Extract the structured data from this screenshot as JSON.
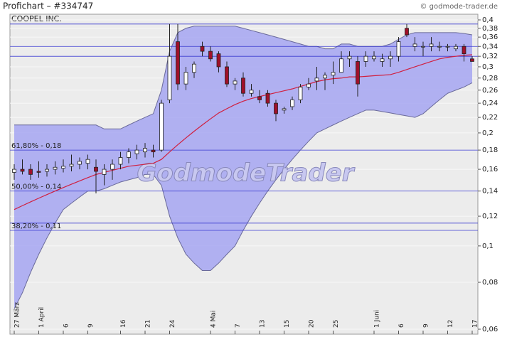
{
  "title": "Profichart – #334747",
  "copyright": "© godmode-trader.de",
  "chart_data": {
    "type": "candlestick",
    "title": "COOPEL INC.",
    "watermark": "GodmodeTrader",
    "log_scale": true,
    "categories": [
      "27 März",
      null,
      null,
      "1 April",
      null,
      null,
      "6",
      null,
      null,
      "9",
      null,
      null,
      null,
      "16",
      null,
      null,
      "21",
      null,
      null,
      "24",
      null,
      null,
      null,
      null,
      "4 Mai",
      null,
      null,
      "7",
      null,
      null,
      "13",
      null,
      null,
      "15",
      null,
      null,
      "20",
      null,
      null,
      "25",
      null,
      null,
      null,
      null,
      "1 Juni",
      null,
      null,
      "6",
      null,
      null,
      "9",
      null,
      null,
      "12",
      null,
      null,
      "17"
    ],
    "open": [
      0.157,
      0.16,
      0.16,
      0.158,
      0.158,
      0.16,
      0.161,
      0.163,
      0.165,
      0.166,
      0.162,
      0.155,
      0.16,
      0.165,
      0.172,
      0.176,
      0.178,
      0.18,
      0.18,
      0.245,
      0.35,
      0.27,
      0.29,
      0.34,
      0.33,
      0.325,
      0.3,
      0.27,
      0.28,
      0.255,
      0.25,
      0.255,
      0.24,
      0.23,
      0.235,
      0.245,
      0.265,
      0.275,
      0.28,
      0.285,
      0.29,
      0.315,
      0.31,
      0.31,
      0.315,
      0.31,
      0.315,
      0.32,
      0.38,
      0.34,
      0.34,
      0.34,
      0.34,
      0.34,
      0.335,
      0.34,
      0.315
    ],
    "high": [
      0.165,
      0.17,
      0.165,
      0.168,
      0.165,
      0.168,
      0.17,
      0.175,
      0.172,
      0.175,
      0.17,
      0.165,
      0.17,
      0.178,
      0.182,
      0.186,
      0.188,
      0.186,
      0.245,
      0.39,
      0.39,
      0.3,
      0.31,
      0.35,
      0.34,
      0.33,
      0.31,
      0.28,
      0.29,
      0.27,
      0.26,
      0.26,
      0.245,
      0.235,
      0.25,
      0.27,
      0.28,
      0.3,
      0.29,
      0.31,
      0.33,
      0.33,
      0.32,
      0.33,
      0.33,
      0.325,
      0.33,
      0.36,
      0.39,
      0.36,
      0.35,
      0.36,
      0.35,
      0.345,
      0.345,
      0.345,
      0.32
    ],
    "low": [
      0.15,
      0.155,
      0.15,
      0.152,
      0.153,
      0.155,
      0.157,
      0.158,
      0.16,
      0.16,
      0.138,
      0.145,
      0.15,
      0.16,
      0.166,
      0.17,
      0.172,
      0.172,
      0.178,
      0.24,
      0.26,
      0.26,
      0.28,
      0.32,
      0.31,
      0.29,
      0.265,
      0.26,
      0.25,
      0.25,
      0.24,
      0.235,
      0.215,
      0.225,
      0.23,
      0.24,
      0.26,
      0.26,
      0.26,
      0.27,
      0.29,
      0.3,
      0.25,
      0.3,
      0.31,
      0.3,
      0.3,
      0.31,
      0.36,
      0.33,
      0.32,
      0.33,
      0.33,
      0.33,
      0.33,
      0.31,
      0.31
    ],
    "close": [
      0.16,
      0.158,
      0.155,
      0.157,
      0.16,
      0.162,
      0.163,
      0.165,
      0.168,
      0.17,
      0.158,
      0.16,
      0.165,
      0.172,
      0.178,
      0.18,
      0.182,
      0.178,
      0.24,
      0.32,
      0.27,
      0.29,
      0.305,
      0.33,
      0.315,
      0.3,
      0.27,
      0.275,
      0.255,
      0.26,
      0.245,
      0.24,
      0.225,
      0.232,
      0.245,
      0.265,
      0.27,
      0.28,
      0.285,
      0.29,
      0.315,
      0.32,
      0.27,
      0.32,
      0.32,
      0.315,
      0.32,
      0.35,
      0.365,
      0.345,
      0.34,
      0.345,
      0.34,
      0.34,
      0.34,
      0.325,
      0.31
    ],
    "up_color": "#ffffff",
    "down_color": "#a0102a",
    "bands": {
      "color": "#aaaaf2",
      "upper": [
        0.21,
        0.21,
        0.21,
        0.21,
        0.21,
        0.21,
        0.21,
        0.21,
        0.21,
        0.21,
        0.21,
        0.205,
        0.205,
        0.205,
        0.21,
        0.215,
        0.22,
        0.225,
        0.26,
        0.33,
        0.37,
        0.38,
        0.385,
        0.385,
        0.385,
        0.385,
        0.385,
        0.385,
        0.38,
        0.375,
        0.37,
        0.365,
        0.36,
        0.355,
        0.35,
        0.345,
        0.34,
        0.34,
        0.335,
        0.335,
        0.345,
        0.345,
        0.34,
        0.34,
        0.34,
        0.34,
        0.345,
        0.355,
        0.365,
        0.37,
        0.37,
        0.37,
        0.37,
        0.37,
        0.37,
        0.368,
        0.365
      ],
      "lower": [
        0.068,
        0.075,
        0.085,
        0.095,
        0.105,
        0.115,
        0.125,
        0.13,
        0.135,
        0.14,
        0.14,
        0.142,
        0.145,
        0.148,
        0.15,
        0.152,
        0.155,
        0.155,
        0.145,
        0.12,
        0.105,
        0.095,
        0.09,
        0.086,
        0.086,
        0.09,
        0.095,
        0.1,
        0.11,
        0.12,
        0.13,
        0.14,
        0.15,
        0.16,
        0.17,
        0.18,
        0.19,
        0.2,
        0.205,
        0.21,
        0.215,
        0.22,
        0.225,
        0.23,
        0.23,
        0.228,
        0.226,
        0.224,
        0.222,
        0.22,
        0.225,
        0.235,
        0.245,
        0.255,
        0.26,
        0.265,
        0.272
      ]
    },
    "ma": {
      "color": "#d02040",
      "values": [
        0.125,
        0.128,
        0.131,
        0.134,
        0.137,
        0.14,
        0.143,
        0.146,
        0.149,
        0.152,
        0.155,
        0.157,
        0.159,
        0.161,
        0.163,
        0.164,
        0.165,
        0.166,
        0.17,
        0.178,
        0.186,
        0.194,
        0.202,
        0.21,
        0.218,
        0.226,
        0.232,
        0.238,
        0.243,
        0.247,
        0.25,
        0.253,
        0.256,
        0.259,
        0.262,
        0.266,
        0.27,
        0.274,
        0.277,
        0.279,
        0.28,
        0.282,
        0.282,
        0.283,
        0.284,
        0.285,
        0.286,
        0.29,
        0.295,
        0.3,
        0.305,
        0.31,
        0.315,
        0.318,
        0.32,
        0.322,
        0.323
      ]
    },
    "ylim": [
      0.06,
      0.4
    ],
    "yticks": [
      {
        "value": 0.06,
        "label": "0,06"
      },
      {
        "value": 0.08,
        "label": "0,08"
      },
      {
        "value": 0.1,
        "label": "0,1"
      },
      {
        "value": 0.12,
        "label": "0,12"
      },
      {
        "value": 0.14,
        "label": "0,14"
      },
      {
        "value": 0.16,
        "label": "0,16"
      },
      {
        "value": 0.18,
        "label": "0,18"
      },
      {
        "value": 0.2,
        "label": "0,2"
      },
      {
        "value": 0.22,
        "label": "0,22"
      },
      {
        "value": 0.24,
        "label": "0,24"
      },
      {
        "value": 0.26,
        "label": "0,26"
      },
      {
        "value": 0.28,
        "label": "0,28"
      },
      {
        "value": 0.3,
        "label": "0,3"
      },
      {
        "value": 0.32,
        "label": "0,32"
      },
      {
        "value": 0.34,
        "label": "0,34"
      },
      {
        "value": 0.36,
        "label": "0,36"
      },
      {
        "value": 0.38,
        "label": "0,38"
      },
      {
        "value": 0.4,
        "label": "0,4"
      }
    ],
    "levels": [
      {
        "value": 0.18,
        "label": "61,80% - 0,18"
      },
      {
        "value": 0.14,
        "label": "50,00% - 0,14"
      },
      {
        "value": 0.11,
        "label": "38,20% - 0,11"
      }
    ],
    "lines": [
      0.39,
      0.34,
      0.32,
      0.115
    ]
  }
}
